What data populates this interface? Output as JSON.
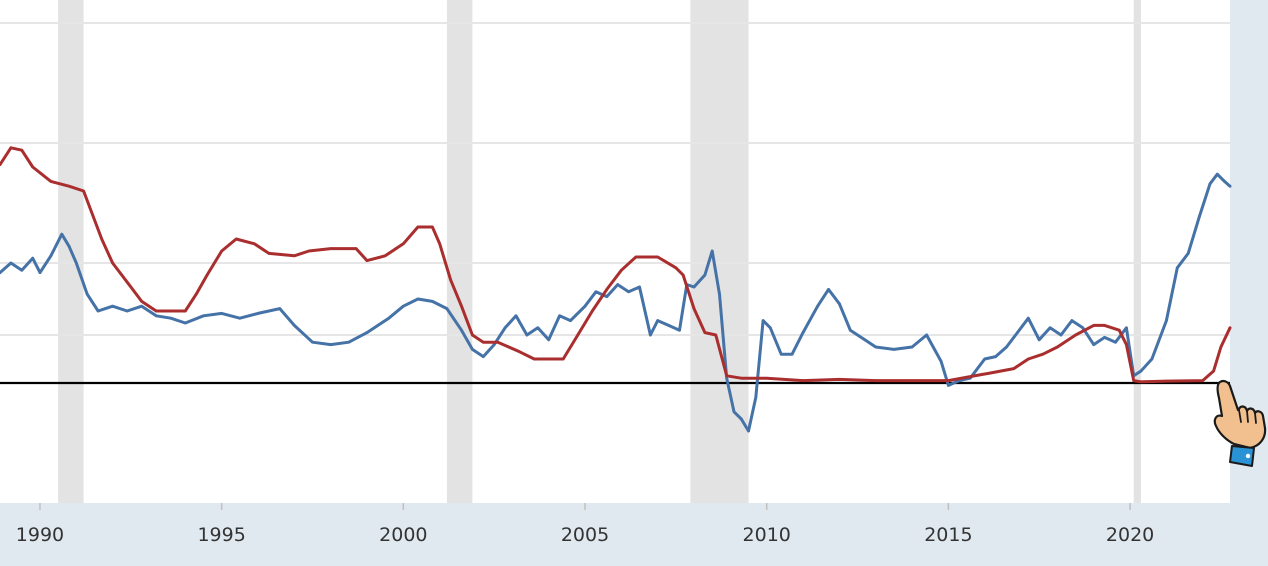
{
  "chart_data": {
    "type": "line",
    "title": "",
    "xlabel": "",
    "ylabel": "",
    "x_ticks": [
      1990,
      1995,
      2000,
      2005,
      2010,
      2015,
      2020
    ],
    "tick_labels": [
      "1990",
      "1995",
      "2000",
      "2005",
      "2010",
      "2015",
      "2020"
    ],
    "xlim": [
      1988.9,
      2022.75
    ],
    "ylim": [
      -4,
      11
    ],
    "grid": true,
    "zero_line": true,
    "recessions": [
      [
        1990.5,
        1991.2
      ],
      [
        2001.2,
        2001.9
      ],
      [
        2007.9,
        2009.5
      ],
      [
        2020.1,
        2020.3
      ]
    ],
    "series": [
      {
        "color": "#4572a7",
        "x": [
          1988.9,
          1989.2,
          1989.5,
          1989.8,
          1990.0,
          1990.3,
          1990.6,
          1990.8,
          1991.0,
          1991.3,
          1991.6,
          1991.8,
          1992.0,
          1992.4,
          1992.8,
          1993.2,
          1993.6,
          1994.0,
          1994.5,
          1995.0,
          1995.5,
          1996.0,
          1996.6,
          1997.0,
          1997.5,
          1998.0,
          1998.5,
          1999.0,
          1999.6,
          2000.0,
          2000.4,
          2000.8,
          2001.2,
          2001.6,
          2001.9,
          2002.2,
          2002.5,
          2002.8,
          2003.1,
          2003.4,
          2003.7,
          2004.0,
          2004.3,
          2004.6,
          2005.0,
          2005.3,
          2005.6,
          2005.9,
          2006.2,
          2006.5,
          2006.8,
          2007.0,
          2007.3,
          2007.6,
          2007.8,
          2008.0,
          2008.3,
          2008.5,
          2008.7,
          2008.9,
          2009.1,
          2009.3,
          2009.5,
          2009.7,
          2009.9,
          2010.1,
          2010.4,
          2010.7,
          2011.0,
          2011.4,
          2011.7,
          2012.0,
          2012.3,
          2012.7,
          2013.0,
          2013.5,
          2014.0,
          2014.4,
          2014.8,
          2015.0,
          2015.3,
          2015.6,
          2016.0,
          2016.3,
          2016.6,
          2016.9,
          2017.2,
          2017.5,
          2017.8,
          2018.1,
          2018.4,
          2018.7,
          2019.0,
          2019.3,
          2019.6,
          2019.9,
          2020.1,
          2020.3,
          2020.6,
          2021.0,
          2021.3,
          2021.6,
          2021.9,
          2022.2,
          2022.4,
          2022.6,
          2022.75
        ],
        "y": [
          4.6,
          5.0,
          4.7,
          5.2,
          4.6,
          5.3,
          6.2,
          5.7,
          5.0,
          3.7,
          3.0,
          3.1,
          3.2,
          3.0,
          3.2,
          2.8,
          2.7,
          2.5,
          2.8,
          2.9,
          2.7,
          2.9,
          3.1,
          2.4,
          1.7,
          1.6,
          1.7,
          2.1,
          2.7,
          3.2,
          3.5,
          3.4,
          3.1,
          2.2,
          1.4,
          1.1,
          1.6,
          2.3,
          2.8,
          2.0,
          2.3,
          1.8,
          2.8,
          2.6,
          3.2,
          3.8,
          3.6,
          4.1,
          3.8,
          4.0,
          2.0,
          2.6,
          2.4,
          2.2,
          4.1,
          4.0,
          4.5,
          5.5,
          3.7,
          0.2,
          -1.2,
          -1.5,
          -2.0,
          -0.6,
          2.6,
          2.3,
          1.2,
          1.2,
          2.1,
          3.2,
          3.9,
          3.3,
          2.2,
          1.8,
          1.5,
          1.4,
          1.5,
          2.0,
          0.9,
          -0.1,
          0.1,
          0.2,
          1.0,
          1.1,
          1.5,
          2.1,
          2.7,
          1.8,
          2.3,
          2.0,
          2.6,
          2.3,
          1.6,
          1.9,
          1.7,
          2.3,
          0.3,
          0.5,
          1.0,
          2.6,
          4.8,
          5.4,
          6.9,
          8.3,
          8.7,
          8.4,
          8.2
        ]
      },
      {
        "color": "#aa2e2e",
        "x": [
          1988.9,
          1989.2,
          1989.5,
          1989.8,
          1990.3,
          1990.8,
          1991.2,
          1991.7,
          1992.0,
          1992.4,
          1992.8,
          1993.2,
          1993.6,
          1994.0,
          1994.3,
          1994.6,
          1995.0,
          1995.4,
          1995.9,
          1996.3,
          1997.0,
          1997.4,
          1998.0,
          1998.7,
          1999.0,
          1999.5,
          2000.0,
          2000.4,
          2000.8,
          2001.0,
          2001.3,
          2001.6,
          2001.9,
          2002.2,
          2002.6,
          2003.2,
          2003.6,
          2004.0,
          2004.4,
          2004.8,
          2005.2,
          2005.6,
          2006.0,
          2006.4,
          2007.0,
          2007.5,
          2007.7,
          2008.0,
          2008.3,
          2008.6,
          2008.9,
          2009.3,
          2010.0,
          2011.0,
          2012.0,
          2013.0,
          2014.0,
          2015.0,
          2015.9,
          2016.1,
          2016.8,
          2017.2,
          2017.6,
          2018.0,
          2018.5,
          2019.0,
          2019.3,
          2019.7,
          2019.9,
          2020.1,
          2020.3,
          2021.0,
          2022.0,
          2022.3,
          2022.5,
          2022.75
        ],
        "y": [
          9.1,
          9.8,
          9.7,
          9.0,
          8.4,
          8.2,
          8.0,
          6.0,
          5.0,
          4.2,
          3.4,
          3.0,
          3.0,
          3.0,
          3.7,
          4.5,
          5.5,
          6.0,
          5.8,
          5.4,
          5.3,
          5.5,
          5.6,
          5.6,
          5.1,
          5.3,
          5.8,
          6.5,
          6.5,
          5.8,
          4.3,
          3.2,
          2.0,
          1.7,
          1.7,
          1.3,
          1.0,
          1.0,
          1.0,
          2.0,
          3.0,
          3.9,
          4.7,
          5.25,
          5.25,
          4.8,
          4.5,
          3.1,
          2.1,
          2.0,
          0.3,
          0.2,
          0.2,
          0.1,
          0.15,
          0.1,
          0.1,
          0.1,
          0.35,
          0.4,
          0.6,
          1.0,
          1.2,
          1.5,
          2.0,
          2.4,
          2.4,
          2.2,
          1.6,
          0.1,
          0.05,
          0.08,
          0.1,
          0.5,
          1.5,
          2.3
        ]
      }
    ]
  },
  "decor": {
    "pointer_icon": "pointing-hand-icon"
  }
}
